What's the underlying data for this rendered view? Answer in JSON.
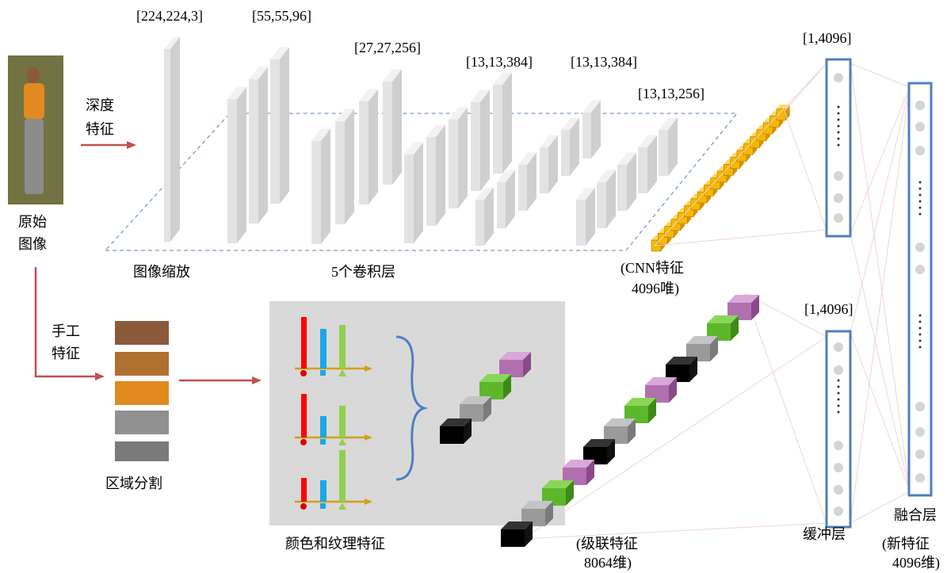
{
  "input_image": {
    "label": [
      "原始",
      "图像"
    ]
  },
  "deep_branch": {
    "label": [
      "深度",
      "特征"
    ],
    "layer_dims": [
      "[224,224,3]",
      "[55,55,96]",
      "[27,27,256]",
      "[13,13,384]",
      "[13,13,384]",
      "[13,13,256]"
    ],
    "stage_labels": [
      "图像缩放",
      "5个卷积层"
    ],
    "cnn_feature": [
      "(CNN特征",
      "4096唯)"
    ],
    "fc_dim": "[1,4096]"
  },
  "hand_branch": {
    "label": [
      "手工",
      "特征"
    ],
    "segmentation": "区域分割",
    "color_texture": "颜色和纹理特征",
    "concat_feature": [
      "(级联特征",
      "8064维)"
    ],
    "buffer_dim": "[1,4096]",
    "buffer_label": "缓冲层"
  },
  "fusion": {
    "label": "融合层",
    "new_feature": [
      "(新特征",
      "4096维)"
    ]
  }
}
